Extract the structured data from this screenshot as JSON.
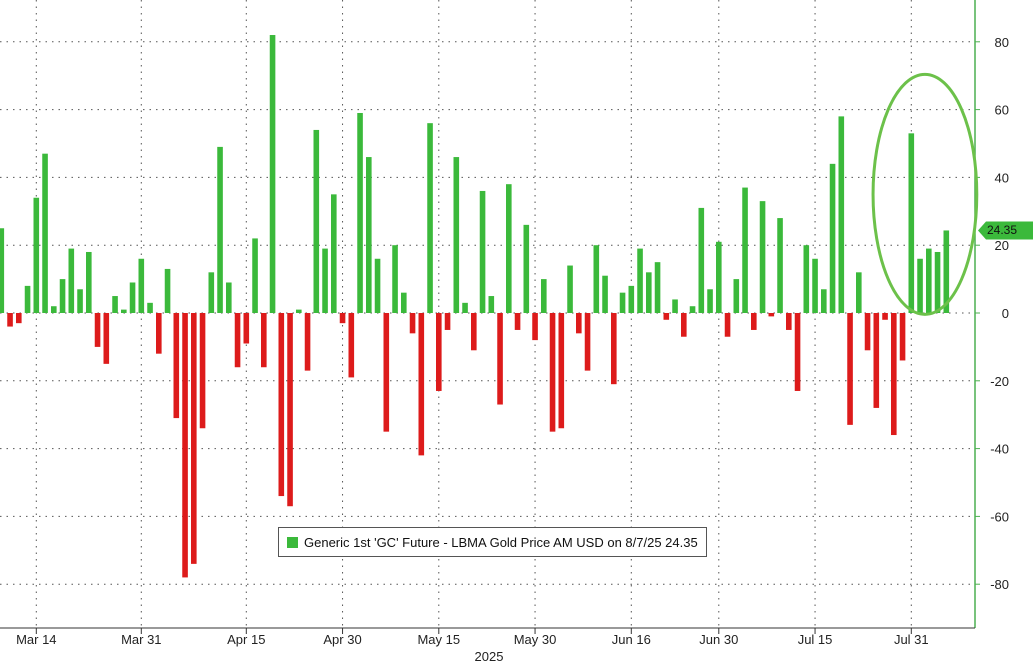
{
  "colors": {
    "positive": "#3bb93b",
    "negative": "#dd1b1b",
    "axis": "#4caf50",
    "grid": "#555555",
    "highlight_ellipse": "#6cc14a"
  },
  "legend": {
    "label": "Generic 1st 'GC' Future - LBMA Gold Price AM USD on 8/7/25 24.35"
  },
  "last_value_tag": "24.35",
  "chart_data": {
    "type": "bar",
    "title": "",
    "xlabel": "2025",
    "ylabel": "",
    "ylim": [
      -92,
      92
    ],
    "y_ticks": [
      80,
      60,
      40,
      20,
      0,
      -20,
      -40,
      -60,
      -80
    ],
    "y_tick_labels": [
      "80",
      "60",
      "40",
      "20",
      "0",
      "-20",
      "-40",
      "-60",
      "-80"
    ],
    "x_tick_labels": [
      "Mar 14",
      "Mar 31",
      "Apr 15",
      "Apr 30",
      "May 15",
      "May 30",
      "Jun 16",
      "Jun 30",
      "Jul 15",
      "Jul 31"
    ],
    "x_tick_bar_index": [
      4,
      16,
      28,
      39,
      50,
      61,
      72,
      82,
      93,
      104
    ],
    "year_label": "2025",
    "grid": true,
    "legend_position": "bottom-center",
    "series": [
      {
        "name": "Generic 1st 'GC' Future - LBMA Gold Price AM USD",
        "values": [
          25,
          -4,
          -3,
          8,
          34,
          47,
          2,
          10,
          19,
          7,
          18,
          -10,
          -15,
          5,
          1,
          9,
          16,
          3,
          -12,
          13,
          -31,
          -78,
          -74,
          -34,
          12,
          49,
          9,
          -16,
          -9,
          22,
          -16,
          82,
          -54,
          -57,
          1,
          -17,
          54,
          19,
          35,
          -3,
          -19,
          59,
          46,
          16,
          -35,
          20,
          6,
          -6,
          -42,
          56,
          -23,
          -5,
          46,
          3,
          -11,
          36,
          5,
          -27,
          38,
          -5,
          26,
          -8,
          10,
          -35,
          -34,
          14,
          -6,
          -17,
          20,
          11,
          -21,
          6,
          8,
          19,
          12,
          15,
          -2,
          4,
          -7,
          2,
          31,
          7,
          21,
          -7,
          10,
          37,
          -5,
          33,
          -1,
          28,
          -5,
          -23,
          20,
          16,
          7,
          44,
          58,
          -33,
          12,
          -11,
          -28,
          -2,
          -36,
          -14,
          53,
          16,
          19,
          18,
          24.35
        ]
      }
    ]
  }
}
